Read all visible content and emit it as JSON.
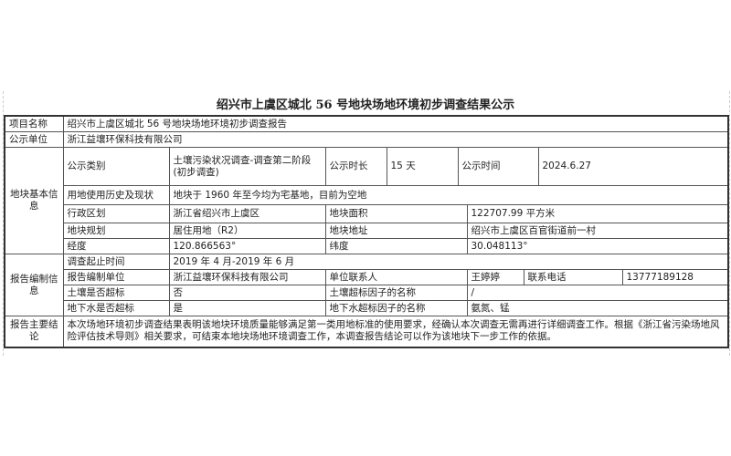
{
  "title": "绍兴市上虞区城北 56 号地块场地环境初步调查结果公示",
  "project_name": {
    "label": "项目名称",
    "value": "绍兴市上虞区城北 56 号地块场地环境初步调查报告"
  },
  "publisher": {
    "label": "公示单位",
    "value": "浙江益壤环保科技有限公司"
  },
  "basic": {
    "section": "地块基本信息",
    "category_label": "公示类别",
    "category_value": "土壤污染状况调查-调查第二阶段(初步调查)",
    "duration_label": "公示时长",
    "duration_value": "15 天",
    "date_label": "公示时间",
    "date_value": "2024.6.27",
    "history_label": "用地使用历史及现状",
    "history_value": "地块于 1960 年至今均为宅基地，目前为空地",
    "district_label": "行政区划",
    "district_value": "浙江省绍兴市上虞区",
    "area_label": "地块面积",
    "area_value": "122707.99 平方米",
    "plan_label": "地块规划",
    "plan_value": "居住用地（R2）",
    "address_label": "地块地址",
    "address_value": "绍兴市上虞区百官街道前一村",
    "lon_label": "经度",
    "lon_value": "120.866563°",
    "lat_label": "纬度",
    "lat_value": "30.048113°"
  },
  "report": {
    "section": "报告编制信息",
    "period_label": "调查起止时间",
    "period_value": "2019 年 4 月-2019 年 6 月",
    "unit_label": "报告编制单位",
    "unit_value": "浙江益壤环保科技有限公司",
    "contact_label": "单位联系人",
    "contact_value": "王婷婷",
    "phone_label": "联系电话",
    "phone_value": "13777189128",
    "soil_label": "土壤是否超标",
    "soil_value": "否",
    "soil_factor_label": "土壤超标因子的名称",
    "soil_factor_value": "/",
    "water_label": "地下水是否超标",
    "water_value": "是",
    "water_factor_label": "地下水超标因子的名称",
    "water_factor_value": "氨氮、锰"
  },
  "conclusion": {
    "label": "报告主要结论",
    "value": "本次场地环境初步调查结果表明该地块环境质量能够满足第一类用地标准的使用要求，经确认本次调查无需再进行详细调查工作。根据《浙江省污染场地风险评估技术导则》相关要求，可结束本地块场地环境调查工作，本调查报告结论可以作为该地块下一步工作的依据。"
  }
}
